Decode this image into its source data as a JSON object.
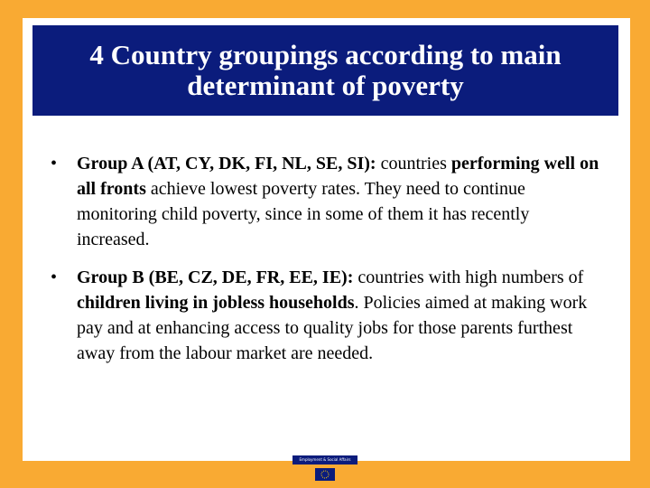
{
  "title": "4 Country groupings according to main determinant of poverty",
  "bullets": [
    {
      "lead": "Group A (AT, CY, DK, FI, NL, SE, SI):",
      "text1": " countries ",
      "emphasis": "performing well on all fronts",
      "text2": " achieve lowest poverty rates. They need to continue monitoring child poverty, since in some of them it has recently increased."
    },
    {
      "lead": "Group B (BE, CZ, DE, FR, EE, IE):",
      "text1": " countries with high numbers of ",
      "emphasis": "children living in jobless households",
      "text2": ". Policies aimed at making work pay and at enhancing access to quality jobs for those parents furthest away from the labour market are needed."
    }
  ],
  "footer": {
    "label": "Employment & Social Affairs"
  }
}
